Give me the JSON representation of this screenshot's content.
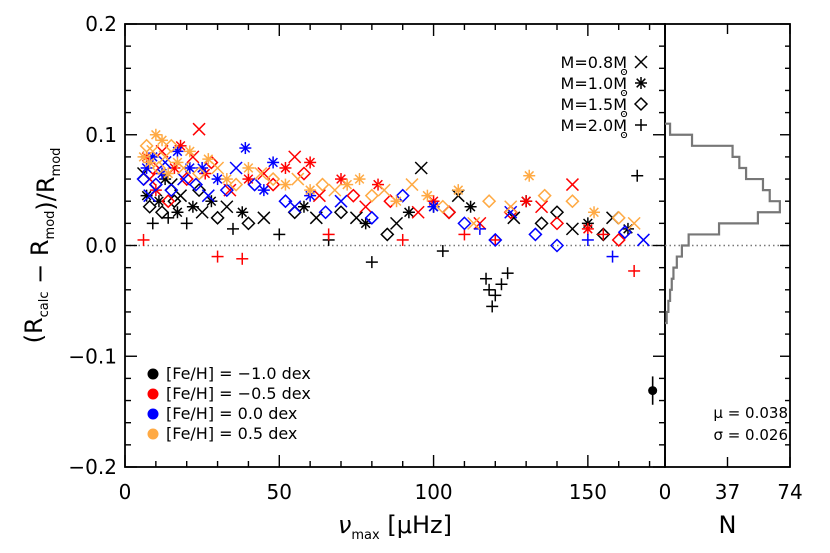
{
  "chart_data": [
    {
      "type": "scatter",
      "xlabel": "ν_max [μHz]",
      "ylabel": "(R_calc − R_mod)/R_mod",
      "xlim": [
        0,
        175
      ],
      "ylim": [
        -0.2,
        0.2
      ],
      "x_ticks": [
        "0",
        "50",
        "100",
        "150"
      ],
      "y_ticks": [
        "−0.2",
        "−0.1",
        "0.0",
        "0.1",
        "0.2"
      ],
      "reference_line": 0.0,
      "mass_legend": [
        {
          "label": "M=0.8M",
          "marker": "x"
        },
        {
          "label": "M=1.0M",
          "marker": "asterisk"
        },
        {
          "label": "M=1.5M",
          "marker": "diamond"
        },
        {
          "label": "M=2.0M",
          "marker": "plus"
        }
      ],
      "metallicity_legend": [
        {
          "label": "[Fe/H] = −1.0 dex",
          "color": "#000000"
        },
        {
          "label": "[Fe/H] = −0.5 dex",
          "color": "#ff0000"
        },
        {
          "label": "[Fe/H] = 0.0 dex",
          "color": "#0000ff"
        },
        {
          "label": "[Fe/H] = 0.5 dex",
          "color": "#ffaa44"
        }
      ],
      "error_bar": {
        "x": 171,
        "y": -0.131,
        "yerr": 0.008
      },
      "series": [
        {
          "color": "#000000",
          "points": [
            [
              6,
              0.065,
              "x"
            ],
            [
              7,
              0.045,
              "asterisk"
            ],
            [
              8,
              0.035,
              "diamond"
            ],
            [
              9,
              0.02,
              "plus"
            ],
            [
              10,
              0.05,
              "x"
            ],
            [
              11,
              0.04,
              "asterisk"
            ],
            [
              12,
              0.03,
              "diamond"
            ],
            [
              13,
              0.06,
              "asterisk"
            ],
            [
              14,
              0.025,
              "plus"
            ],
            [
              15,
              0.055,
              "x"
            ],
            [
              16,
              0.04,
              "diamond"
            ],
            [
              17,
              0.03,
              "asterisk"
            ],
            [
              18,
              0.045,
              "x"
            ],
            [
              20,
              0.02,
              "plus"
            ],
            [
              22,
              0.035,
              "asterisk"
            ],
            [
              24,
              0.05,
              "diamond"
            ],
            [
              25,
              0.03,
              "x"
            ],
            [
              28,
              0.04,
              "asterisk"
            ],
            [
              30,
              0.025,
              "diamond"
            ],
            [
              33,
              0.035,
              "x"
            ],
            [
              35,
              0.015,
              "plus"
            ],
            [
              38,
              0.03,
              "asterisk"
            ],
            [
              40,
              0.02,
              "diamond"
            ],
            [
              45,
              0.025,
              "x"
            ],
            [
              50,
              0.01,
              "plus"
            ],
            [
              55,
              0.03,
              "diamond"
            ],
            [
              58,
              0.035,
              "asterisk"
            ],
            [
              62,
              0.025,
              "x"
            ],
            [
              66,
              0.005,
              "plus"
            ],
            [
              70,
              0.03,
              "diamond"
            ],
            [
              75,
              0.025,
              "x"
            ],
            [
              78,
              0.02,
              "asterisk"
            ],
            [
              80,
              -0.015,
              "plus"
            ],
            [
              85,
              0.01,
              "diamond"
            ],
            [
              88,
              0.02,
              "x"
            ],
            [
              92,
              0.03,
              "asterisk"
            ],
            [
              96,
              0.07,
              "x"
            ],
            [
              100,
              0.035,
              "asterisk"
            ],
            [
              103,
              -0.005,
              "plus"
            ],
            [
              105,
              0.03,
              "diamond"
            ],
            [
              108,
              0.045,
              "x"
            ],
            [
              112,
              0.035,
              "asterisk"
            ],
            [
              117,
              -0.03,
              "plus"
            ],
            [
              118,
              -0.04,
              "plus"
            ],
            [
              119,
              -0.055,
              "plus"
            ],
            [
              120,
              -0.045,
              "plus"
            ],
            [
              122,
              -0.035,
              "plus"
            ],
            [
              124,
              -0.025,
              "plus"
            ],
            [
              126,
              0.025,
              "x"
            ],
            [
              130,
              0.04,
              "asterisk"
            ],
            [
              135,
              0.02,
              "diamond"
            ],
            [
              140,
              0.03,
              "diamond"
            ],
            [
              145,
              0.015,
              "x"
            ],
            [
              150,
              0.02,
              "asterisk"
            ],
            [
              155,
              0.01,
              "diamond"
            ],
            [
              158,
              0.025,
              "x"
            ],
            [
              163,
              0.015,
              "asterisk"
            ],
            [
              166,
              0.063,
              "plus"
            ]
          ]
        },
        {
          "color": "#ff0000",
          "points": [
            [
              6,
              0.005,
              "plus"
            ],
            [
              7,
              0.08,
              "asterisk"
            ],
            [
              8,
              0.06,
              "x"
            ],
            [
              9,
              0.07,
              "diamond"
            ],
            [
              10,
              0.05,
              "asterisk"
            ],
            [
              12,
              0.085,
              "x"
            ],
            [
              14,
              0.04,
              "diamond"
            ],
            [
              16,
              0.07,
              "asterisk"
            ],
            [
              18,
              0.09,
              "asterisk"
            ],
            [
              20,
              0.06,
              "diamond"
            ],
            [
              22,
              0.08,
              "x"
            ],
            [
              24,
              0.105,
              "x"
            ],
            [
              26,
              0.065,
              "asterisk"
            ],
            [
              28,
              0.075,
              "diamond"
            ],
            [
              30,
              -0.01,
              "plus"
            ],
            [
              34,
              0.05,
              "x"
            ],
            [
              38,
              -0.012,
              "plus"
            ],
            [
              40,
              0.06,
              "asterisk"
            ],
            [
              45,
              0.065,
              "x"
            ],
            [
              48,
              0.055,
              "diamond"
            ],
            [
              52,
              0.07,
              "asterisk"
            ],
            [
              55,
              0.08,
              "x"
            ],
            [
              58,
              0.065,
              "diamond"
            ],
            [
              60,
              0.075,
              "asterisk"
            ],
            [
              63,
              0.045,
              "x"
            ],
            [
              66,
              0.01,
              "plus"
            ],
            [
              70,
              0.06,
              "asterisk"
            ],
            [
              74,
              0.045,
              "diamond"
            ],
            [
              78,
              0.035,
              "x"
            ],
            [
              82,
              0.055,
              "asterisk"
            ],
            [
              86,
              0.04,
              "diamond"
            ],
            [
              90,
              0.005,
              "plus"
            ],
            [
              95,
              0.03,
              "x"
            ],
            [
              100,
              0.04,
              "asterisk"
            ],
            [
              105,
              0.03,
              "diamond"
            ],
            [
              110,
              0.01,
              "plus"
            ],
            [
              115,
              0.02,
              "x"
            ],
            [
              120,
              0.005,
              "plus"
            ],
            [
              125,
              0.03,
              "diamond"
            ],
            [
              130,
              0.04,
              "asterisk"
            ],
            [
              135,
              0.035,
              "x"
            ],
            [
              140,
              0.02,
              "diamond"
            ],
            [
              145,
              0.055,
              "x"
            ],
            [
              150,
              0.015,
              "asterisk"
            ],
            [
              155,
              0.01,
              "plus"
            ],
            [
              160,
              0.005,
              "diamond"
            ],
            [
              165,
              -0.023,
              "plus"
            ]
          ]
        },
        {
          "color": "#0000ff",
          "points": [
            [
              6,
              0.06,
              "diamond"
            ],
            [
              7,
              0.07,
              "asterisk"
            ],
            [
              8,
              0.045,
              "x"
            ],
            [
              9,
              0.08,
              "asterisk"
            ],
            [
              10,
              0.055,
              "diamond"
            ],
            [
              12,
              0.065,
              "asterisk"
            ],
            [
              13,
              0.075,
              "x"
            ],
            [
              15,
              0.05,
              "diamond"
            ],
            [
              17,
              0.085,
              "asterisk"
            ],
            [
              19,
              0.06,
              "x"
            ],
            [
              21,
              0.07,
              "asterisk"
            ],
            [
              23,
              0.055,
              "diamond"
            ],
            [
              25,
              0.07,
              "asterisk"
            ],
            [
              27,
              0.045,
              "x"
            ],
            [
              30,
              0.06,
              "asterisk"
            ],
            [
              33,
              0.05,
              "diamond"
            ],
            [
              36,
              0.07,
              "x"
            ],
            [
              39,
              0.088,
              "asterisk"
            ],
            [
              42,
              0.055,
              "diamond"
            ],
            [
              45,
              0.05,
              "asterisk"
            ],
            [
              48,
              0.075,
              "asterisk"
            ],
            [
              52,
              0.04,
              "diamond"
            ],
            [
              55,
              0.035,
              "x"
            ],
            [
              60,
              0.045,
              "asterisk"
            ],
            [
              65,
              0.03,
              "diamond"
            ],
            [
              70,
              0.04,
              "x"
            ],
            [
              80,
              0.025,
              "diamond"
            ],
            [
              90,
              0.045,
              "diamond"
            ],
            [
              100,
              0.035,
              "asterisk"
            ],
            [
              110,
              0.02,
              "diamond"
            ],
            [
              115,
              0.015,
              "plus"
            ],
            [
              120,
              0.005,
              "diamond"
            ],
            [
              125,
              0.03,
              "x"
            ],
            [
              133,
              0.01,
              "diamond"
            ],
            [
              140,
              0.0,
              "diamond"
            ],
            [
              150,
              0.005,
              "plus"
            ],
            [
              158,
              -0.01,
              "plus"
            ],
            [
              162,
              0.012,
              "diamond"
            ],
            [
              168,
              0.005,
              "x"
            ]
          ]
        },
        {
          "color": "#ffaa44",
          "points": [
            [
              6,
              0.08,
              "asterisk"
            ],
            [
              7,
              0.09,
              "diamond"
            ],
            [
              8,
              0.075,
              "asterisk"
            ],
            [
              9,
              0.085,
              "x"
            ],
            [
              10,
              0.1,
              "asterisk"
            ],
            [
              11,
              0.07,
              "diamond"
            ],
            [
              12,
              0.095,
              "asterisk"
            ],
            [
              13,
              0.08,
              "x"
            ],
            [
              14,
              0.065,
              "asterisk"
            ],
            [
              15,
              0.09,
              "diamond"
            ],
            [
              17,
              0.075,
              "asterisk"
            ],
            [
              19,
              0.07,
              "x"
            ],
            [
              21,
              0.085,
              "asterisk"
            ],
            [
              24,
              0.065,
              "diamond"
            ],
            [
              27,
              0.078,
              "asterisk"
            ],
            [
              30,
              0.07,
              "x"
            ],
            [
              33,
              0.06,
              "asterisk"
            ],
            [
              36,
              0.055,
              "diamond"
            ],
            [
              40,
              0.07,
              "asterisk"
            ],
            [
              44,
              0.065,
              "x"
            ],
            [
              48,
              0.06,
              "diamond"
            ],
            [
              52,
              0.055,
              "asterisk"
            ],
            [
              56,
              0.06,
              "x"
            ],
            [
              60,
              0.05,
              "asterisk"
            ],
            [
              64,
              0.055,
              "diamond"
            ],
            [
              68,
              0.05,
              "x"
            ],
            [
              72,
              0.055,
              "asterisk"
            ],
            [
              76,
              0.06,
              "asterisk"
            ],
            [
              80,
              0.045,
              "diamond"
            ],
            [
              84,
              0.05,
              "x"
            ],
            [
              88,
              0.04,
              "asterisk"
            ],
            [
              93,
              0.055,
              "x"
            ],
            [
              98,
              0.045,
              "asterisk"
            ],
            [
              103,
              0.035,
              "diamond"
            ],
            [
              108,
              0.05,
              "asterisk"
            ],
            [
              113,
              0.02,
              "x"
            ],
            [
              118,
              0.04,
              "diamond"
            ],
            [
              125,
              0.035,
              "x"
            ],
            [
              131,
              0.063,
              "asterisk"
            ],
            [
              136,
              0.045,
              "diamond"
            ],
            [
              145,
              0.04,
              "diamond"
            ],
            [
              152,
              0.03,
              "asterisk"
            ],
            [
              160,
              0.025,
              "diamond"
            ],
            [
              165,
              0.02,
              "x"
            ]
          ]
        }
      ]
    },
    {
      "type": "histogram",
      "xlabel": "N",
      "x_ticks": [
        "0",
        "37",
        "74"
      ],
      "xlim": [
        0,
        74
      ],
      "ylim": [
        -0.2,
        0.2
      ],
      "bin_edges": [
        -0.07,
        -0.06,
        -0.05,
        -0.04,
        -0.03,
        -0.02,
        -0.01,
        0.0,
        0.01,
        0.02,
        0.03,
        0.04,
        0.05,
        0.06,
        0.07,
        0.08,
        0.09,
        0.1,
        0.11
      ],
      "counts": [
        1,
        2,
        3,
        4,
        5,
        7,
        10,
        14,
        32,
        55,
        68,
        62,
        58,
        48,
        44,
        40,
        16,
        3
      ],
      "stats": {
        "mu": "μ = 0.038",
        "sigma": "σ = 0.026"
      }
    }
  ]
}
